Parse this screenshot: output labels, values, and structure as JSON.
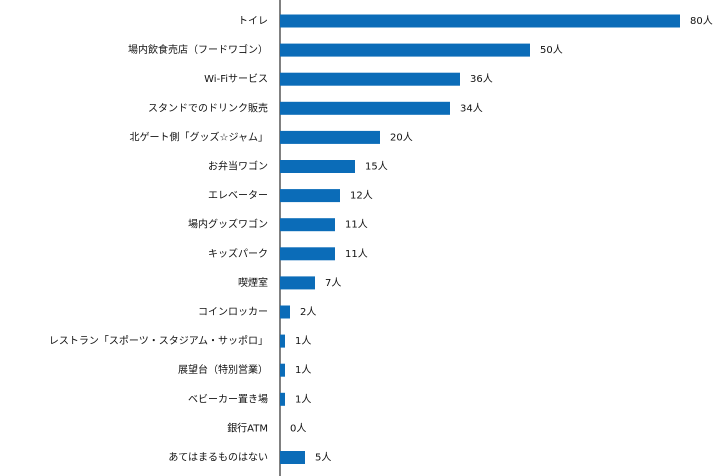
{
  "chart_data": {
    "type": "bar",
    "orientation": "horizontal",
    "categories": [
      "トイレ",
      "場内飲食売店（フードワゴン）",
      "Wi-Fiサービス",
      "スタンドでのドリンク販売",
      "北ゲート側「グッズ☆ジャム」",
      "お弁当ワゴン",
      "エレベーター",
      "場内グッズワゴン",
      "キッズパーク",
      "喫煙室",
      "コインロッカー",
      "レストラン「スポーツ・スタジアム・サッポロ」",
      "展望台（特別営業）",
      "ベビーカー置き場",
      "銀行ATM",
      "あてはまるものはない"
    ],
    "values": [
      80,
      50,
      36,
      34,
      20,
      15,
      12,
      11,
      11,
      7,
      2,
      1,
      1,
      1,
      0,
      5
    ],
    "value_labels": [
      "80人",
      "50人",
      "36人",
      "34人",
      "20人",
      "15人",
      "12人",
      "11人",
      "11人",
      "7人",
      "2人",
      "1人",
      "1人",
      "1人",
      "0人",
      "5人"
    ],
    "xlim": [
      0,
      80
    ],
    "title": "",
    "xlabel": "",
    "ylabel": "",
    "grid": false,
    "legend": "none",
    "bar_color": "#0b6cb8",
    "axis_color": "#000000"
  }
}
